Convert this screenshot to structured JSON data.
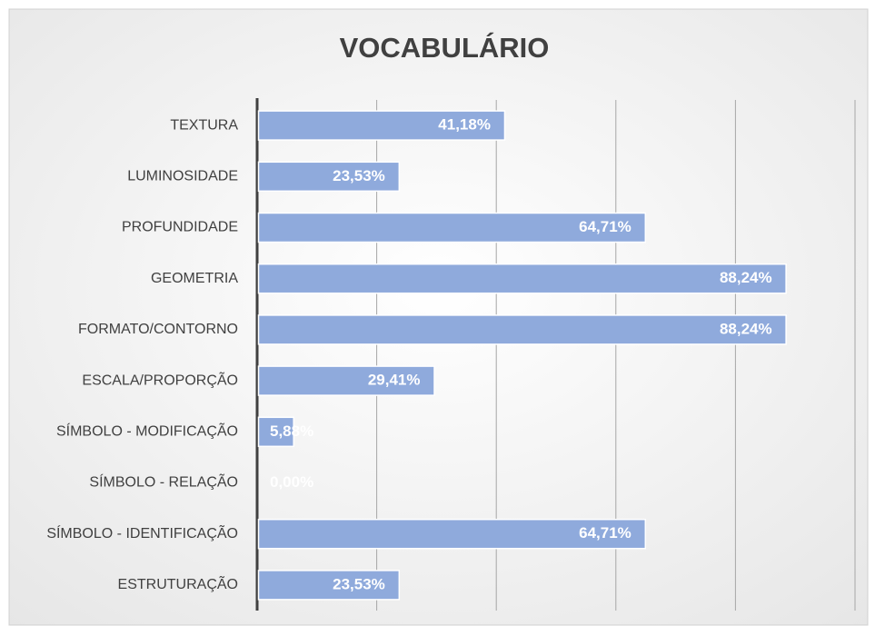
{
  "chart_data": {
    "type": "bar",
    "orientation": "horizontal",
    "title": "VOCABULÁRIO",
    "categories": [
      "TEXTURA",
      "LUMINOSIDADE",
      "PROFUNDIDADE",
      "GEOMETRIA",
      "FORMATO/CONTORNO",
      "ESCALA/PROPORÇÃO",
      "SÍMBOLO - MODIFICAÇÃO",
      "SÍMBOLO - RELAÇÃO",
      "SÍMBOLO - IDENTIFICAÇÃO",
      "ESTRUTURAÇÃO"
    ],
    "values": [
      41.18,
      23.53,
      64.71,
      88.24,
      88.24,
      29.41,
      5.88,
      0.0,
      64.71,
      23.53
    ],
    "value_labels": [
      "41,18%",
      "23,53%",
      "64,71%",
      "88,24%",
      "88,24%",
      "29,41%",
      "5,88%",
      "0,00%",
      "64,71%",
      "23,53%"
    ],
    "color": "#8faadc",
    "xlim": [
      0,
      100
    ],
    "xticks": [
      0,
      20,
      40,
      60,
      80,
      100
    ],
    "grid": true
  }
}
